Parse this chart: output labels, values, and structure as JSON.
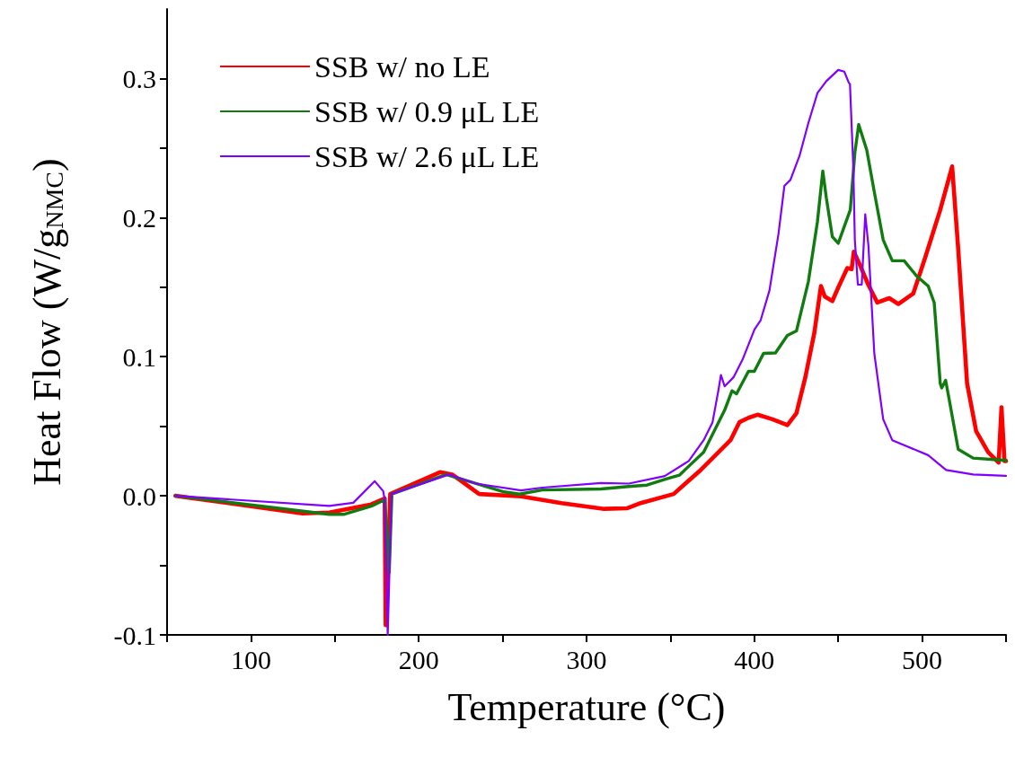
{
  "chart_data": {
    "type": "line",
    "xlabel": "Temperature (°C)",
    "ylabel": "Heat Flow (W/g$_{NMC}$)",
    "xlim": [
      50,
      550
    ],
    "ylim": [
      -0.1,
      0.35
    ],
    "xticks": [
      {
        "value": 50,
        "label": null
      },
      100,
      {
        "value": 150,
        "label": null
      },
      200,
      {
        "value": 250,
        "label": null
      },
      300,
      {
        "value": 350,
        "label": null
      },
      400,
      {
        "value": 450,
        "label": null
      },
      500,
      {
        "value": 550,
        "label": null
      }
    ],
    "yticks": [
      -0.1,
      {
        "value": -0.05,
        "label": null
      },
      {
        "value": 0,
        "label": "0.0"
      },
      {
        "value": 0.05,
        "label": null
      },
      0.1,
      {
        "value": 0.15,
        "label": null
      },
      0.2,
      {
        "value": 0.25,
        "label": null
      },
      0.3
    ],
    "grid": false,
    "legend": "top left",
    "marker": "none",
    "line_style": "solid",
    "series": [
      {
        "name": "SSB w/ no LE",
        "color": "#ff0000",
        "x": [
          55,
          130.7,
          146.7,
          171.7,
          179.7,
          180.3,
          183,
          212.7,
          220,
          236,
          261,
          285,
          310.5,
          324,
          332.3,
          351.9,
          368,
          385.8,
          391.1,
          396.5,
          401.9,
          410.8,
          419.7,
          425.1,
          430.4,
          435.8,
          439.7,
          442,
          446.5,
          450,
          455.4,
          458,
          459.3,
          462.6,
          467.9,
          473.3,
          480.4,
          485.8,
          494.7,
          501.8,
          510.8,
          517.9,
          521.5,
          526.8,
          532.2,
          539.3,
          545.6,
          547.3,
          549.1,
          550
        ],
        "values": [
          0,
          -0.0127,
          -0.012,
          -0.0062,
          -0.002,
          -0.093,
          0.0013,
          0.017,
          0.0153,
          0.0013,
          -0.0004,
          -0.0052,
          -0.0094,
          -0.009,
          -0.0052,
          0.0013,
          0.0185,
          0.04,
          0.0529,
          0.0561,
          0.0583,
          0.055,
          0.0508,
          0.0594,
          0.0852,
          0.1174,
          0.1508,
          0.1432,
          0.14,
          0.1497,
          0.1637,
          0.163,
          0.1755,
          0.1669,
          0.1518,
          0.1389,
          0.1421,
          0.1379,
          0.1454,
          0.1712,
          0.2056,
          0.2368,
          0.1776,
          0.0808,
          0.0465,
          0.0314,
          0.0239,
          0.0637,
          0.025,
          0.025
        ]
      },
      {
        "name": "SSB w/ 0.9 μL LE",
        "color": "#107c10",
        "x": [
          55,
          146.7,
          155.6,
          171.7,
          179.7,
          182.4,
          184,
          216.3,
          250,
          260,
          273.6,
          308.6,
          325,
          336,
          347,
          355.3,
          369.8,
          382.3,
          386.7,
          389.4,
          396.5,
          400,
          405.5,
          412.6,
          419.7,
          425.1,
          432.2,
          437.6,
          440.8,
          442.9,
          446.5,
          450,
          457.2,
          459.9,
          462.2,
          467,
          471.5,
          476.8,
          482.2,
          489.3,
          496.5,
          503.6,
          507.2,
          510.8,
          511.7,
          514,
          516,
          521.5,
          530.4,
          550
        ],
        "values": [
          0,
          -0.0133,
          -0.0133,
          -0.0075,
          -0.0028,
          -0.055,
          0.0013,
          0.0153,
          0.003,
          0.0012,
          0.0042,
          0.0049,
          0.0067,
          0.0077,
          0.012,
          0.0148,
          0.0314,
          0.0615,
          0.0755,
          0.0733,
          0.0895,
          0.0895,
          0.1024,
          0.1027,
          0.1153,
          0.1185,
          0.154,
          0.197,
          0.2335,
          0.2142,
          0.1862,
          0.1815,
          0.2056,
          0.2465,
          0.2669,
          0.2486,
          0.2185,
          0.184,
          0.169,
          0.169,
          0.1583,
          0.1508,
          0.1389,
          0.0808,
          0.0776,
          0.083,
          0.0701,
          0.0335,
          0.0271,
          0.0254
        ]
      },
      {
        "name": "SSB w/ 2.6 μL LE",
        "color": "#8000ff",
        "x": [
          55,
          146.7,
          161,
          173.8,
          178.8,
          179.6,
          181.5,
          183.8,
          218,
          234,
          261,
          273.6,
          308.6,
          325.2,
          346.6,
          360.9,
          369.8,
          375.1,
          378.7,
          380.1,
          382.3,
          387.6,
          393,
          400.1,
          403.7,
          409,
          414.4,
          417.9,
          421.5,
          426.9,
          432.2,
          437.6,
          442.9,
          450,
          453.6,
          456.3,
          457,
          459,
          459.9,
          461.7,
          464,
          466.1,
          468,
          471.5,
          476.8,
          482.2,
          503.6,
          514.3,
          530.4,
          550
        ],
        "values": [
          0,
          -0.0073,
          -0.005,
          0.0105,
          0.0034,
          -0.002,
          -0.1,
          0.0013,
          0.0153,
          0.0088,
          0.0039,
          0.0059,
          0.0092,
          0.0088,
          0.0142,
          0.025,
          0.04,
          0.0529,
          0.0766,
          0.0869,
          0.0787,
          0.0852,
          0.098,
          0.1196,
          0.126,
          0.1475,
          0.1884,
          0.2228,
          0.2271,
          0.2443,
          0.268,
          0.2895,
          0.2981,
          0.3062,
          0.305,
          0.297,
          0.296,
          0.2357,
          0.184,
          0.1518,
          0.1518,
          0.2024,
          0.1798,
          0.1024,
          0.055,
          0.04,
          0.0292,
          0.0185,
          0.0153,
          0.0143
        ]
      }
    ]
  }
}
